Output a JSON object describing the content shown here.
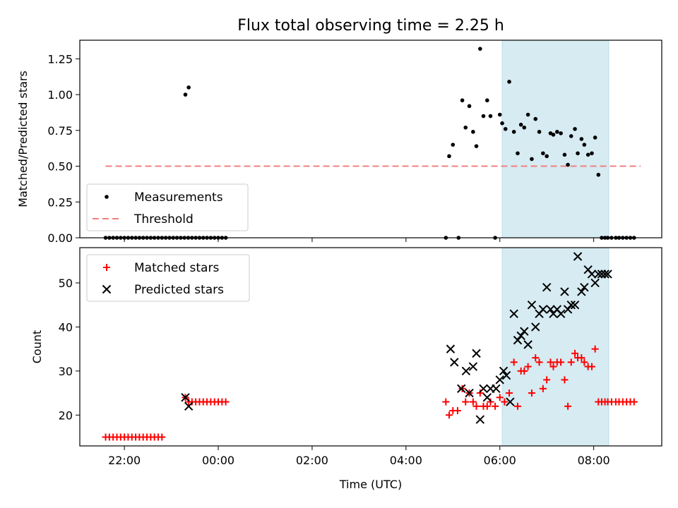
{
  "chart_data": [
    {
      "type": "scatter",
      "title": "Flux total observing time = 2.25 h",
      "xlabel": "",
      "ylabel": "Matched/Predicted stars",
      "xlim": [
        -2.95,
        9.45
      ],
      "ylim": [
        0.0,
        1.38
      ],
      "yticks": [
        "0.00",
        "0.25",
        "0.50",
        "0.75",
        "1.00",
        "1.25"
      ],
      "ytick_values": [
        0,
        0.25,
        0.5,
        0.75,
        1.0,
        1.25
      ],
      "x_unit": "hours relative to 00:00 UTC",
      "highlight_span": [
        6.05,
        8.32
      ],
      "highlight_color": "#add8e6",
      "legend": {
        "placement": "lower-left",
        "entries": [
          {
            "label": "Measurements",
            "marker": "dot",
            "color": "#000000"
          },
          {
            "label": "Threshold",
            "marker": "dashed-line",
            "color": "#f08080"
          }
        ]
      },
      "series": [
        {
          "name": "Threshold",
          "kind": "line",
          "color": "#f08080",
          "x": [
            -2.4,
            9.0
          ],
          "y": [
            0.5,
            0.5
          ]
        },
        {
          "name": "Measurements",
          "kind": "dot",
          "color": "#000000",
          "x": [
            -2.4,
            -2.32,
            -2.24,
            -2.16,
            -2.08,
            -2.0,
            -1.92,
            -1.84,
            -1.76,
            -1.68,
            -1.6,
            -1.52,
            -1.44,
            -1.36,
            -1.28,
            -1.2,
            -1.12,
            -1.04,
            -0.96,
            -0.88,
            -0.8,
            -0.72,
            -0.64,
            -0.56,
            -0.48,
            -0.4,
            -0.32,
            -0.24,
            -0.16,
            -0.08,
            0.0,
            0.08,
            0.16,
            -0.7,
            -0.63,
            4.85,
            4.92,
            5.0,
            5.12,
            5.2,
            5.27,
            5.35,
            5.43,
            5.5,
            5.58,
            5.65,
            5.73,
            5.8,
            5.9,
            6.0,
            6.05,
            6.12,
            6.2,
            6.3,
            6.38,
            6.45,
            6.52,
            6.6,
            6.68,
            6.76,
            6.84,
            6.92,
            7.0,
            7.08,
            7.14,
            7.22,
            7.3,
            7.38,
            7.45,
            7.52,
            7.6,
            7.66,
            7.74,
            7.8,
            7.88,
            7.96,
            8.03,
            8.1,
            8.17,
            8.24,
            8.3,
            8.38,
            8.47,
            8.54,
            8.62,
            8.7,
            8.78,
            8.86
          ],
          "y": [
            0,
            0,
            0,
            0,
            0,
            0,
            0,
            0,
            0,
            0,
            0,
            0,
            0,
            0,
            0,
            0,
            0,
            0,
            0,
            0,
            0,
            0,
            0,
            0,
            0,
            0,
            0,
            0,
            0,
            0,
            0,
            0,
            0,
            1.0,
            1.05,
            0,
            0.57,
            0.65,
            0,
            0.96,
            0.77,
            0.92,
            0.74,
            0.64,
            1.32,
            0.85,
            0.96,
            0.85,
            0,
            0.86,
            0.8,
            0.76,
            1.09,
            0.74,
            0.59,
            0.79,
            0.77,
            0.86,
            0.55,
            0.83,
            0.74,
            0.59,
            0.57,
            0.73,
            0.72,
            0.74,
            0.73,
            0.58,
            0.51,
            0.71,
            0.76,
            0.59,
            0.69,
            0.65,
            0.58,
            0.59,
            0.7,
            0.44,
            0,
            0,
            0,
            0,
            0,
            0,
            0,
            0,
            0,
            0
          ]
        }
      ]
    },
    {
      "type": "scatter",
      "title": "",
      "xlabel": "Time (UTC)",
      "ylabel": "Count",
      "xlim": [
        -2.95,
        9.45
      ],
      "ylim": [
        13.0,
        58.0
      ],
      "xticks": [
        "22:00",
        "00:00",
        "02:00",
        "04:00",
        "06:00",
        "08:00"
      ],
      "xtick_values": [
        -2,
        0,
        2,
        4,
        6,
        8
      ],
      "yticks": [
        "20",
        "30",
        "40",
        "50"
      ],
      "ytick_values": [
        20,
        30,
        40,
        50
      ],
      "x_unit": "hours relative to 00:00 UTC",
      "highlight_span": [
        6.05,
        8.32
      ],
      "highlight_color": "#add8e6",
      "legend": {
        "placement": "top-left",
        "entries": [
          {
            "label": "Matched stars",
            "marker": "plus",
            "color": "#ff0000"
          },
          {
            "label": "Predicted stars",
            "marker": "cross",
            "color": "#000000"
          }
        ]
      },
      "series": [
        {
          "name": "Matched stars",
          "kind": "plus",
          "color": "#ff0000",
          "x": [
            -2.4,
            -2.32,
            -2.24,
            -2.16,
            -2.08,
            -2.0,
            -1.92,
            -1.84,
            -1.76,
            -1.68,
            -1.6,
            -1.52,
            -1.44,
            -1.36,
            -1.28,
            -1.2,
            -0.7,
            -0.63,
            -0.56,
            -0.48,
            -0.4,
            -0.32,
            -0.24,
            -0.16,
            -0.08,
            0.0,
            0.08,
            0.16,
            4.85,
            4.92,
            5.0,
            5.1,
            5.2,
            5.27,
            5.35,
            5.43,
            5.5,
            5.58,
            5.65,
            5.73,
            5.8,
            5.9,
            6.0,
            6.1,
            6.2,
            6.3,
            6.38,
            6.45,
            6.52,
            6.6,
            6.68,
            6.76,
            6.84,
            6.92,
            7.0,
            7.08,
            7.14,
            7.22,
            7.3,
            7.38,
            7.45,
            7.52,
            7.6,
            7.66,
            7.74,
            7.8,
            7.88,
            7.96,
            8.03,
            8.1,
            8.17,
            8.24,
            8.3,
            8.38,
            8.47,
            8.54,
            8.62,
            8.7,
            8.78,
            8.86
          ],
          "y": [
            15,
            15,
            15,
            15,
            15,
            15,
            15,
            15,
            15,
            15,
            15,
            15,
            15,
            15,
            15,
            15,
            24,
            23,
            23,
            23,
            23,
            23,
            23,
            23,
            23,
            23,
            23,
            23,
            23,
            20,
            21,
            21,
            26,
            23,
            25,
            23,
            22,
            25,
            22,
            22,
            23,
            22,
            24,
            23,
            25,
            32,
            22,
            30,
            30,
            31,
            25,
            33,
            32,
            26,
            28,
            32,
            31,
            32,
            32,
            28,
            22,
            32,
            34,
            33,
            33,
            32,
            31,
            31,
            35,
            23,
            23,
            23,
            23,
            23,
            23,
            23,
            23,
            23,
            23,
            23
          ],
          "x_trim_note": ""
        },
        {
          "name": "Predicted stars",
          "kind": "cross",
          "color": "#000000",
          "x": [
            -0.7,
            -0.63,
            4.95,
            5.03,
            5.18,
            5.28,
            5.35,
            5.43,
            5.5,
            5.58,
            5.65,
            5.73,
            5.8,
            5.92,
            6.0,
            6.08,
            6.14,
            6.22,
            6.3,
            6.38,
            6.45,
            6.52,
            6.6,
            6.68,
            6.76,
            6.84,
            6.92,
            7.0,
            7.08,
            7.14,
            7.22,
            7.3,
            7.38,
            7.45,
            7.52,
            7.6,
            7.66,
            7.74,
            7.8,
            7.88,
            7.96,
            8.03,
            8.1,
            8.17,
            8.24,
            8.3
          ],
          "y": [
            24,
            22,
            35,
            32,
            26,
            30,
            25,
            31,
            34,
            19,
            26,
            24,
            26,
            26,
            28,
            30,
            29,
            23,
            43,
            37,
            38,
            39,
            36,
            45,
            40,
            43,
            44,
            49,
            44,
            43,
            44,
            43,
            48,
            44,
            45,
            45,
            56,
            48,
            49,
            53,
            52,
            50,
            52,
            52,
            52,
            52
          ]
        }
      ]
    }
  ]
}
